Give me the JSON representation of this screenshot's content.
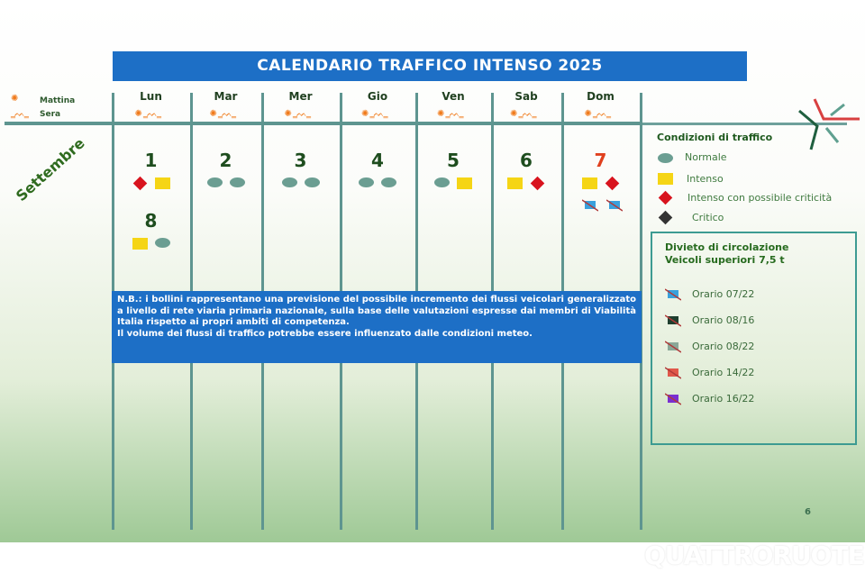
{
  "title": "CALENDARIO TRAFFICO INTENSO 2025",
  "legend_top": {
    "morning": "Mattina",
    "evening": "Sera"
  },
  "days": [
    "Lun",
    "Mar",
    "Mer",
    "Gio",
    "Ven",
    "Sab",
    "Dom"
  ],
  "month": "Settembre",
  "calendar": [
    {
      "day": "1",
      "morning": "intenso-criticita",
      "evening": "intenso"
    },
    {
      "day": "2",
      "morning": "normale",
      "evening": "normale"
    },
    {
      "day": "3",
      "morning": "normale",
      "evening": "normale"
    },
    {
      "day": "4",
      "morning": "normale",
      "evening": "normale"
    },
    {
      "day": "5",
      "morning": "normale",
      "evening": "intenso"
    },
    {
      "day": "6",
      "morning": "intenso",
      "evening": "intenso-criticita"
    },
    {
      "day": "7",
      "morning": "intenso",
      "evening": "intenso-criticita",
      "truck_ban": [
        "07/22",
        "07/22"
      ],
      "holiday": true
    },
    {
      "day": "8",
      "morning": "intenso",
      "evening": "normale"
    }
  ],
  "colors": {
    "normale": "#6b9e92",
    "intenso": "#f5d515",
    "intenso-criticita": "#d8141e",
    "critico": "#333333",
    "banner": "#1d6fc6",
    "holiday_number": "#e0401e"
  },
  "nb": {
    "text1": "N.B.: i bollini rappresentano una previsione del possibile incremento dei flussi veicolari generalizzato a livello di rete viaria primaria nazionale, sulla base delle valutazioni espresse dai membri di Viabilità Italia rispetto ai propri ambiti di competenza.",
    "text2": "Il volume dei flussi di traffico potrebbe essere influenzato dalle condizioni meteo."
  },
  "conditions": {
    "title": "Condizioni di traffico",
    "items": [
      "Normale",
      "Intenso",
      "Intenso con possibile criticità",
      "Critico"
    ]
  },
  "ban": {
    "title1": "Divieto di circolazione",
    "title2": "Veicoli superiori 7,5 t",
    "items": [
      {
        "label": "Orario 07/22",
        "color": "#3aa0dc"
      },
      {
        "label": "Orario 08/16",
        "color": "#1f3f2f"
      },
      {
        "label": "Orario 08/22",
        "color": "#8aa898"
      },
      {
        "label": "Orario 14/22",
        "color": "#e0584a"
      },
      {
        "label": "Orario 16/22",
        "color": "#7a2fd0"
      }
    ]
  },
  "page_number": "6",
  "watermark": "QUATTRORUOTE"
}
